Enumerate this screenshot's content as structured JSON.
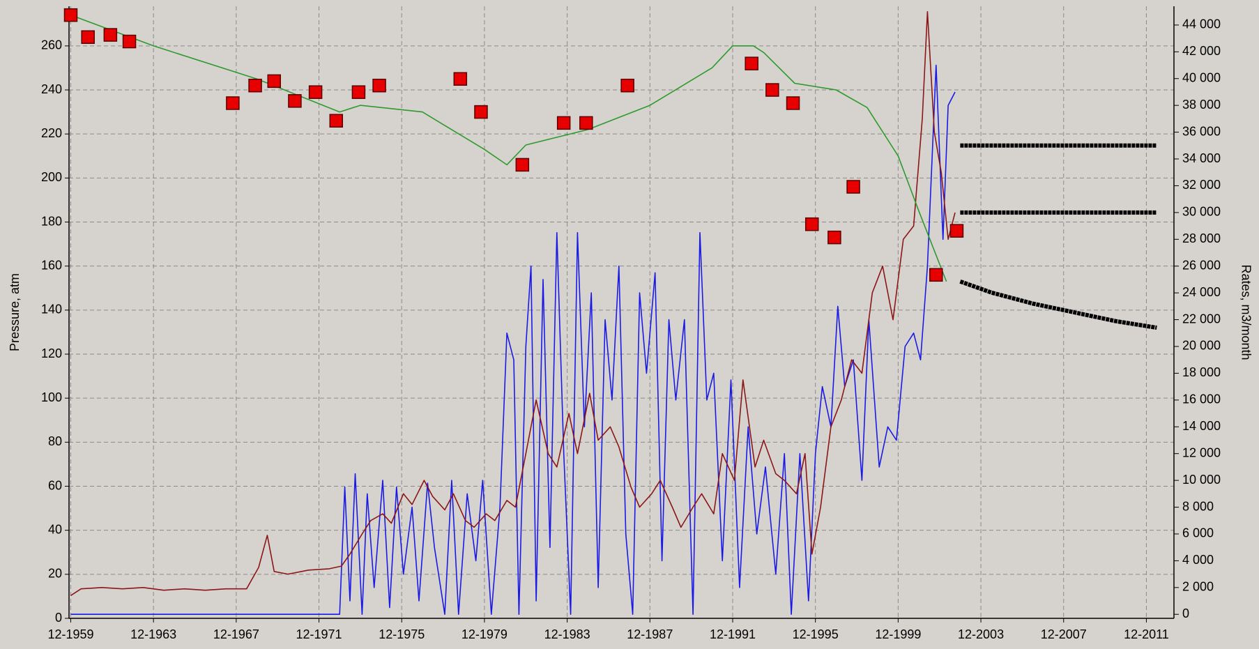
{
  "chart_data": {
    "type": "line",
    "ylabel": "Pressure, atm",
    "y2label": "Rates, m3/month",
    "grid": true,
    "xlim": [
      "1959-11",
      "2013-04"
    ],
    "xticks": [
      {
        "value": "1959-12",
        "label": "12-1959"
      },
      {
        "value": "1963-12",
        "label": "12-1963"
      },
      {
        "value": "1967-12",
        "label": "12-1967"
      },
      {
        "value": "1971-12",
        "label": "12-1971"
      },
      {
        "value": "1975-12",
        "label": "12-1975"
      },
      {
        "value": "1979-12",
        "label": "12-1979"
      },
      {
        "value": "1983-12",
        "label": "12-1983"
      },
      {
        "value": "1987-12",
        "label": "12-1987"
      },
      {
        "value": "1991-12",
        "label": "12-1991"
      },
      {
        "value": "1995-12",
        "label": "12-1995"
      },
      {
        "value": "1999-12",
        "label": "12-1999"
      },
      {
        "value": "2003-12",
        "label": "12-2003"
      },
      {
        "value": "2007-12",
        "label": "12-2007"
      },
      {
        "value": "2011-12",
        "label": "12-2011"
      }
    ],
    "ylim": [
      0,
      278
    ],
    "yticks": [
      0,
      20,
      40,
      60,
      80,
      100,
      120,
      140,
      160,
      180,
      200,
      220,
      240,
      260
    ],
    "y2lim": [
      -300,
      45400
    ],
    "y2ticks": [
      0,
      {
        "value": 2000,
        "label": "2 000"
      },
      {
        "value": 4000,
        "label": "4 000"
      },
      {
        "value": 6000,
        "label": "6 000"
      },
      {
        "value": 8000,
        "label": "8 000"
      },
      {
        "value": 10000,
        "label": "10 000"
      },
      {
        "value": 12000,
        "label": "12 000"
      },
      {
        "value": 14000,
        "label": "14 000"
      },
      {
        "value": 16000,
        "label": "16 000"
      },
      {
        "value": 18000,
        "label": "18 000"
      },
      {
        "value": 20000,
        "label": "20 000"
      },
      {
        "value": 22000,
        "label": "22 000"
      },
      {
        "value": 24000,
        "label": "24 000"
      },
      {
        "value": 26000,
        "label": "26 000"
      },
      {
        "value": 28000,
        "label": "28 000"
      },
      {
        "value": 30000,
        "label": "30 000"
      },
      {
        "value": 32000,
        "label": "32 000"
      },
      {
        "value": 34000,
        "label": "34 000"
      },
      {
        "value": 36000,
        "label": "36 000"
      },
      {
        "value": 38000,
        "label": "38 000"
      },
      {
        "value": 40000,
        "label": "40 000"
      },
      {
        "value": 42000,
        "label": "42 000"
      },
      {
        "value": 44000,
        "label": "44 000"
      }
    ],
    "series": [
      {
        "type": "line",
        "axis": "y2",
        "color": "#1a1ae6",
        "x": [
          "1959-12",
          "1972-12",
          "1973-03",
          "1973-06",
          "1973-09",
          "1974-01",
          "1974-04",
          "1974-08",
          "1975-01",
          "1975-05",
          "1975-09",
          "1976-01",
          "1976-06",
          "1976-10",
          "1977-03",
          "1977-07",
          "1978-01",
          "1978-05",
          "1978-09",
          "1979-02",
          "1979-07",
          "1979-11",
          "1980-04",
          "1980-09",
          "1981-01",
          "1981-05",
          "1981-08",
          "1981-12",
          "1982-03",
          "1982-06",
          "1982-10",
          "1983-02",
          "1983-06",
          "1983-10",
          "1984-02",
          "1984-06",
          "1984-10",
          "1985-02",
          "1985-06",
          "1985-10",
          "1986-02",
          "1986-06",
          "1986-10",
          "1987-02",
          "1987-06",
          "1987-10",
          "1988-03",
          "1988-07",
          "1988-11",
          "1989-03",
          "1989-08",
          "1990-01",
          "1990-05",
          "1990-09",
          "1991-01",
          "1991-06",
          "1991-11",
          "1992-04",
          "1992-09",
          "1993-02",
          "1993-07",
          "1994-01",
          "1994-06",
          "1994-10",
          "1995-03",
          "1995-08",
          "1995-12",
          "1996-04",
          "1996-09",
          "1997-01",
          "1997-05",
          "1997-10",
          "1998-03",
          "1998-07",
          "1999-01",
          "1999-06",
          "1999-11",
          "2000-04",
          "2000-09",
          "2001-01",
          "2001-05",
          "2001-10",
          "2002-02",
          "2002-05",
          "2002-09"
        ],
        "values": [
          0,
          0,
          9500,
          1000,
          10500,
          0,
          9000,
          2000,
          10000,
          500,
          9500,
          3000,
          8000,
          1000,
          9800,
          5000,
          0,
          10000,
          0,
          9000,
          4000,
          10000,
          0,
          8000,
          21000,
          19000,
          0,
          20000,
          26000,
          1000,
          25000,
          5000,
          28500,
          12000,
          0,
          28500,
          14000,
          24000,
          2000,
          22000,
          16000,
          26000,
          6000,
          0,
          24000,
          18000,
          25500,
          4000,
          22000,
          16000,
          22000,
          0,
          28500,
          16000,
          18000,
          4000,
          17500,
          2000,
          14000,
          6000,
          11000,
          3000,
          12000,
          0,
          12000,
          1000,
          12000,
          17000,
          14000,
          23000,
          17000,
          19000,
          10000,
          22000,
          11000,
          14000,
          13000,
          20000,
          21000,
          19000,
          26000,
          41000,
          28000,
          38000,
          39000
        ]
      },
      {
        "type": "line",
        "axis": "y2",
        "color": "#8b1616",
        "x": [
          "1959-12",
          "1960-06",
          "1961-06",
          "1962-06",
          "1963-06",
          "1964-06",
          "1965-06",
          "1966-06",
          "1967-06",
          "1968-06",
          "1969-01",
          "1969-06",
          "1969-10",
          "1970-06",
          "1971-06",
          "1972-06",
          "1973-01",
          "1973-06",
          "1974-01",
          "1974-06",
          "1975-01",
          "1975-06",
          "1976-01",
          "1976-06",
          "1977-01",
          "1977-06",
          "1978-01",
          "1978-06",
          "1979-01",
          "1979-06",
          "1980-01",
          "1980-06",
          "1981-01",
          "1981-06",
          "1981-12",
          "1982-06",
          "1983-01",
          "1983-06",
          "1984-01",
          "1984-06",
          "1985-01",
          "1985-06",
          "1986-01",
          "1986-06",
          "1987-01",
          "1987-06",
          "1988-01",
          "1988-06",
          "1989-01",
          "1989-06",
          "1990-01",
          "1990-06",
          "1991-01",
          "1991-06",
          "1992-01",
          "1992-06",
          "1993-01",
          "1993-06",
          "1994-01",
          "1994-06",
          "1995-01",
          "1995-06",
          "1995-10",
          "1996-03",
          "1996-09",
          "1997-03",
          "1997-09",
          "1998-03",
          "1998-09",
          "1999-03",
          "1999-09",
          "2000-03",
          "2000-09",
          "2001-02",
          "2001-05",
          "2001-09",
          "2002-01",
          "2002-05",
          "2002-09"
        ],
        "values": [
          1400,
          1900,
          2000,
          1900,
          2000,
          1800,
          1900,
          1800,
          1900,
          1900,
          3500,
          5900,
          3200,
          3000,
          3300,
          3400,
          3600,
          4500,
          6000,
          7000,
          7500,
          6800,
          9000,
          8200,
          10000,
          8800,
          7800,
          9000,
          7000,
          6500,
          7500,
          7000,
          8500,
          8000,
          12000,
          16000,
          12000,
          11000,
          15000,
          12000,
          16500,
          13000,
          14000,
          12500,
          9500,
          8000,
          9000,
          10000,
          8000,
          6500,
          8000,
          9000,
          7500,
          12000,
          10000,
          17500,
          11000,
          13000,
          10500,
          10000,
          9000,
          12000,
          4500,
          8000,
          14000,
          16000,
          19000,
          18000,
          24000,
          26000,
          22000,
          28000,
          29000,
          37000,
          45000,
          36000,
          33000,
          28000,
          30000
        ]
      },
      {
        "type": "line",
        "color": "#2e9a2e",
        "x": [
          "1959-12",
          "1963-12",
          "1968-12",
          "1972-12",
          "1973-12",
          "1976-12",
          "1979-12",
          "1981-01",
          "1981-12",
          "1984-12",
          "1987-12",
          "1990-12",
          "1991-12",
          "1992-12",
          "1993-06",
          "1994-12",
          "1996-12",
          "1998-06",
          "1999-12",
          "2000-12",
          "2002-04"
        ],
        "values": [
          274,
          260,
          245,
          230,
          233,
          230,
          213,
          206,
          215,
          222,
          233,
          250,
          260,
          260,
          257,
          243,
          240,
          232,
          210,
          185,
          153
        ]
      },
      {
        "type": "scatter",
        "color": "#e60000",
        "x": [
          "1959-12",
          "1960-10",
          "1961-11",
          "1962-10",
          "1967-10",
          "1968-11",
          "1969-10",
          "1970-10",
          "1971-10",
          "1972-10",
          "1973-11",
          "1974-11",
          "1978-10",
          "1979-10",
          "1981-10",
          "1983-10",
          "1984-11",
          "1986-11",
          "1992-11",
          "1993-11",
          "1994-11",
          "1995-10",
          "1996-11",
          "1997-10",
          "2001-10",
          "2002-10"
        ],
        "values": [
          274,
          264,
          265,
          262,
          234,
          242,
          244,
          235,
          239,
          226,
          239,
          242,
          245,
          230,
          206,
          225,
          225,
          242,
          252,
          240,
          234,
          179,
          173,
          196,
          156,
          176
        ]
      },
      {
        "type": "forecast",
        "color": "#000000",
        "x": [
          "2002-12",
          "2004-06",
          "2006-06",
          "2008-06",
          "2010-06",
          "2012-06"
        ],
        "values": [
          153,
          148,
          143,
          139,
          135,
          132
        ]
      },
      {
        "type": "forecast",
        "axis": "y2",
        "color": "#000000",
        "x": [
          "2002-12",
          "2012-06"
        ],
        "values": [
          35000,
          35000
        ]
      },
      {
        "type": "forecast",
        "axis": "y2",
        "color": "#000000",
        "x": [
          "2002-12",
          "2012-06"
        ],
        "values": [
          30000,
          30000
        ]
      }
    ]
  }
}
